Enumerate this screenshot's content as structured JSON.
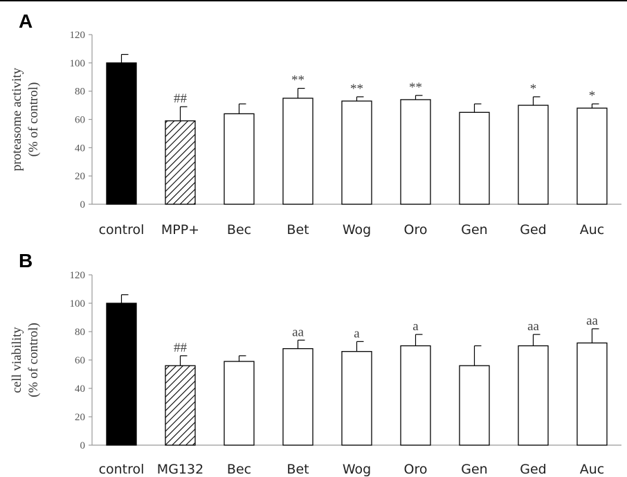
{
  "chart_data": [
    {
      "type": "bar",
      "panel": "A",
      "ylabel_line1": "proteasome activity",
      "ylabel_line2": "(% of control)",
      "ylim": [
        0,
        120
      ],
      "yticks": [
        0,
        20,
        40,
        60,
        80,
        100,
        120
      ],
      "grid": false,
      "categories": [
        "control",
        "MPP+",
        "Bec",
        "Bet",
        "Wog",
        "Oro",
        "Gen",
        "Ged",
        "Auc"
      ],
      "values": [
        100,
        59,
        64,
        75,
        73,
        74,
        65,
        70,
        68
      ],
      "errors": [
        6,
        10,
        7,
        7,
        3,
        3,
        6,
        6,
        3
      ],
      "fills": [
        "solid",
        "hatched",
        "open",
        "open",
        "open",
        "open",
        "open",
        "open",
        "open"
      ],
      "annotations": [
        "",
        "##",
        "",
        "**",
        "**",
        "**",
        "",
        "*",
        "*"
      ]
    },
    {
      "type": "bar",
      "panel": "B",
      "ylabel_line1": "cell viability",
      "ylabel_line2": "(% of control)",
      "ylim": [
        0,
        120
      ],
      "yticks": [
        0,
        20,
        40,
        60,
        80,
        100,
        120
      ],
      "grid": false,
      "categories": [
        "control",
        "MG132",
        "Bec",
        "Bet",
        "Wog",
        "Oro",
        "Gen",
        "Ged",
        "Auc"
      ],
      "values": [
        100,
        56,
        59,
        68,
        66,
        70,
        56,
        70,
        72
      ],
      "errors": [
        6,
        7,
        4,
        6,
        7,
        8,
        14,
        8,
        10
      ],
      "fills": [
        "solid",
        "hatched",
        "open",
        "open",
        "open",
        "open",
        "open",
        "open",
        "open"
      ],
      "annotations": [
        "",
        "##",
        "",
        "aa",
        "a",
        "a",
        "",
        "aa",
        "aa"
      ]
    }
  ],
  "colors": {
    "solid_fill": "#000000",
    "open_fill": "#ffffff",
    "stroke": "#000000",
    "axis": "#999999"
  }
}
